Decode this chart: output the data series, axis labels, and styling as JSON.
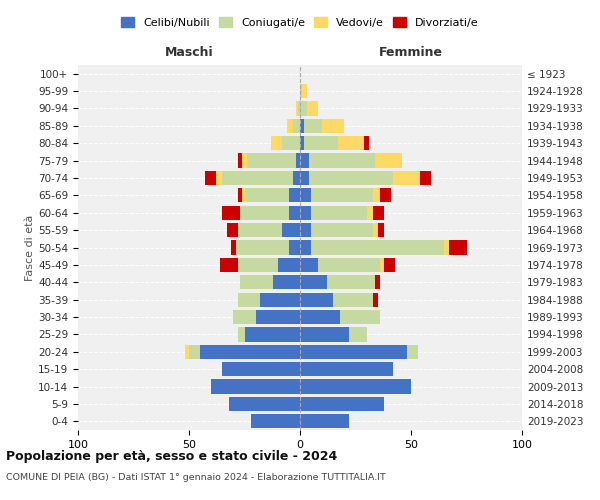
{
  "age_groups": [
    "100+",
    "95-99",
    "90-94",
    "85-89",
    "80-84",
    "75-79",
    "70-74",
    "65-69",
    "60-64",
    "55-59",
    "50-54",
    "45-49",
    "40-44",
    "35-39",
    "30-34",
    "25-29",
    "20-24",
    "15-19",
    "10-14",
    "5-9",
    "0-4"
  ],
  "birth_years": [
    "≤ 1923",
    "1924-1928",
    "1929-1933",
    "1934-1938",
    "1939-1943",
    "1944-1948",
    "1949-1953",
    "1954-1958",
    "1959-1963",
    "1964-1968",
    "1969-1973",
    "1974-1978",
    "1979-1983",
    "1984-1988",
    "1989-1993",
    "1994-1998",
    "1999-2003",
    "2004-2008",
    "2009-2013",
    "2014-2018",
    "2019-2023"
  ],
  "maschi_celibe": [
    0,
    0,
    0,
    0,
    0,
    2,
    3,
    5,
    5,
    8,
    5,
    10,
    12,
    18,
    20,
    25,
    45,
    35,
    40,
    32,
    22
  ],
  "maschi_coniugato": [
    0,
    0,
    1,
    3,
    8,
    22,
    32,
    20,
    22,
    20,
    24,
    18,
    15,
    10,
    10,
    3,
    5,
    0,
    0,
    0,
    0
  ],
  "maschi_vedovo": [
    0,
    0,
    1,
    3,
    5,
    2,
    3,
    1,
    0,
    0,
    0,
    0,
    0,
    0,
    0,
    0,
    2,
    0,
    0,
    0,
    0
  ],
  "maschi_divorziato": [
    0,
    0,
    0,
    0,
    0,
    2,
    5,
    2,
    8,
    5,
    2,
    8,
    0,
    0,
    0,
    0,
    0,
    0,
    0,
    0,
    0
  ],
  "femmine_nubile": [
    0,
    0,
    0,
    2,
    2,
    4,
    4,
    5,
    5,
    5,
    5,
    8,
    12,
    15,
    18,
    22,
    48,
    42,
    50,
    38,
    22
  ],
  "femmine_coniugata": [
    0,
    1,
    3,
    8,
    15,
    30,
    38,
    28,
    25,
    28,
    60,
    28,
    22,
    18,
    18,
    8,
    5,
    0,
    0,
    0,
    0
  ],
  "femmine_vedova": [
    0,
    2,
    5,
    10,
    12,
    12,
    12,
    3,
    3,
    2,
    2,
    2,
    0,
    0,
    0,
    0,
    0,
    0,
    0,
    0,
    0
  ],
  "femmine_divorziata": [
    0,
    0,
    0,
    0,
    2,
    0,
    5,
    5,
    5,
    3,
    8,
    5,
    2,
    2,
    0,
    0,
    0,
    0,
    0,
    0,
    0
  ],
  "colors": {
    "celibe": "#4472C4",
    "coniugato": "#C5D9A0",
    "vedovo": "#FFD966",
    "divorziato": "#CC0000"
  },
  "xlim": 100,
  "title1": "Popolazione per età, sesso e stato civile - 2024",
  "title2": "COMUNE DI PEIA (BG) - Dati ISTAT 1° gennaio 2024 - Elaborazione TUTTITALIA.IT",
  "ylabel_left": "Fasce di età",
  "maschi_label": "Maschi",
  "femmine_label": "Femmine",
  "legend_labels": [
    "Celibi/Nubili",
    "Coniugati/e",
    "Vedovi/e",
    "Divorziati/e"
  ],
  "bg_color": "#ffffff",
  "plot_bg": "#f0f0f0",
  "grid_color": "#ffffff"
}
